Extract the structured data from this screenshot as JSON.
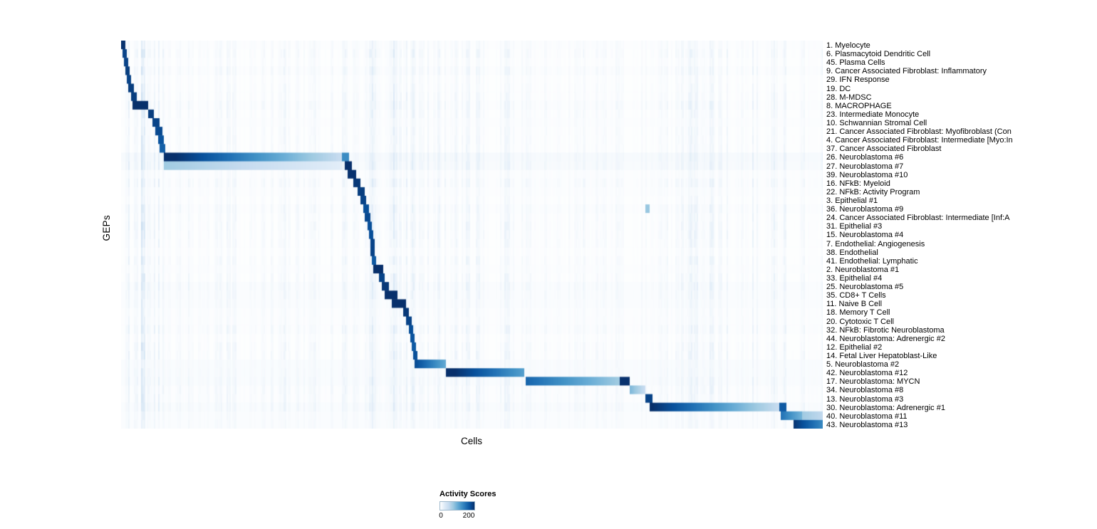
{
  "chart_data": {
    "type": "heatmap",
    "title": "",
    "xlabel": "Cells",
    "ylabel": "GEPs",
    "grid": false,
    "n_rows": 45,
    "colorbar": {
      "title": "Activity Scores",
      "tick_labels": [
        "0",
        "200"
      ],
      "min": 0,
      "max": 232,
      "palette": [
        "#ffffff",
        "#deebf7",
        "#c6dbef",
        "#9ecae1",
        "#6baed6",
        "#4292c6",
        "#2171b5",
        "#08519c",
        "#08306b"
      ]
    },
    "rows": [
      {
        "label": "1. Myelocyte",
        "base": 3,
        "segments": [
          [
            0.0,
            0.005,
            230,
            230
          ]
        ]
      },
      {
        "label": "6. Plasmacytoid Dendritic Cell",
        "base": 2,
        "segments": [
          [
            0.002,
            0.007,
            215,
            215
          ]
        ]
      },
      {
        "label": "45. Plasma Cells",
        "base": 2,
        "segments": [
          [
            0.004,
            0.009,
            215,
            215
          ]
        ]
      },
      {
        "label": "9. Cancer Associated Fibroblast: Inflammatory",
        "base": 3,
        "segments": [
          [
            0.005,
            0.012,
            220,
            220
          ]
        ]
      },
      {
        "label": "29. IFN Response",
        "base": 2,
        "segments": [
          [
            0.007,
            0.014,
            215,
            215
          ]
        ]
      },
      {
        "label": "19. DC",
        "base": 2,
        "segments": [
          [
            0.01,
            0.018,
            220,
            220
          ]
        ]
      },
      {
        "label": "28. M-MDSC",
        "base": 2,
        "segments": [
          [
            0.013,
            0.021,
            220,
            220
          ]
        ]
      },
      {
        "label": "8. MACROPHAGE",
        "base": 3,
        "segments": [
          [
            0.015,
            0.038,
            235,
            235
          ]
        ]
      },
      {
        "label": "23. Intermediate Monocyte",
        "base": 2,
        "segments": [
          [
            0.037,
            0.046,
            220,
            220
          ]
        ]
      },
      {
        "label": "10. Schwannian Stromal Cell",
        "base": 3,
        "segments": [
          [
            0.044,
            0.053,
            215,
            215
          ]
        ]
      },
      {
        "label": "21. Cancer Associated Fibroblast: Myofibroblast (Con",
        "base": 2,
        "segments": [
          [
            0.048,
            0.057,
            210,
            210
          ]
        ]
      },
      {
        "label": "4. Cancer Associated Fibroblast: Intermediate [Myo:In",
        "base": 2,
        "segments": [
          [
            0.051,
            0.059,
            200,
            200
          ]
        ]
      },
      {
        "label": "37. Cancer Associated Fibroblast",
        "base": 2,
        "segments": [
          [
            0.054,
            0.061,
            190,
            190
          ]
        ]
      },
      {
        "label": "26. Neuroblastoma #6",
        "base": 7,
        "segments": [
          [
            0.059,
            0.313,
            245,
            55
          ],
          [
            0.314,
            0.323,
            150,
            150
          ]
        ]
      },
      {
        "label": "27. Neuroblastoma #7",
        "base": 6,
        "segments": [
          [
            0.059,
            0.313,
            85,
            25
          ],
          [
            0.317,
            0.328,
            235,
            235
          ]
        ]
      },
      {
        "label": "39. Neuroblastoma #10",
        "base": 3,
        "segments": [
          [
            0.322,
            0.333,
            230,
            230
          ]
        ]
      },
      {
        "label": "16. NFkB: Myeloid",
        "base": 3,
        "segments": [
          [
            0.33,
            0.341,
            225,
            225
          ]
        ]
      },
      {
        "label": "22. NFkB: Activity Program",
        "base": 3,
        "segments": [
          [
            0.336,
            0.346,
            220,
            220
          ]
        ]
      },
      {
        "label": "3. Epithelial #1",
        "base": 2,
        "segments": [
          [
            0.341,
            0.349,
            215,
            215
          ]
        ]
      },
      {
        "label": "36. Neuroblastoma #9",
        "base": 3,
        "segments": [
          [
            0.344,
            0.352,
            205,
            205
          ],
          [
            0.746,
            0.752,
            90,
            90
          ]
        ]
      },
      {
        "label": "24. Cancer Associated Fibroblast: Intermediate [Inf:A",
        "base": 2,
        "segments": [
          [
            0.347,
            0.354,
            210,
            210
          ]
        ]
      },
      {
        "label": "31. Epithelial #3",
        "base": 2,
        "segments": [
          [
            0.35,
            0.356,
            205,
            205
          ]
        ]
      },
      {
        "label": "15. Neuroblastoma #4",
        "base": 2,
        "segments": [
          [
            0.352,
            0.358,
            205,
            205
          ]
        ]
      },
      {
        "label": "7. Endothelial: Angiogenesis",
        "base": 2,
        "segments": [
          [
            0.354,
            0.36,
            215,
            215
          ]
        ]
      },
      {
        "label": "38. Endothelial",
        "base": 2,
        "segments": [
          [
            0.355,
            0.361,
            215,
            215
          ]
        ]
      },
      {
        "label": "41. Endothelial: Lymphatic",
        "base": 2,
        "segments": [
          [
            0.356,
            0.362,
            195,
            195
          ]
        ]
      },
      {
        "label": "2. Neuroblastoma #1",
        "base": 3,
        "segments": [
          [
            0.358,
            0.372,
            245,
            245
          ]
        ]
      },
      {
        "label": "33. Epithelial #4",
        "base": 2,
        "segments": [
          [
            0.366,
            0.374,
            215,
            215
          ]
        ]
      },
      {
        "label": "25. Neuroblastoma #5",
        "base": 4,
        "segments": [
          [
            0.371,
            0.381,
            225,
            225
          ]
        ]
      },
      {
        "label": "35. CD8+ T Cells",
        "base": 4,
        "segments": [
          [
            0.374,
            0.392,
            235,
            235
          ]
        ]
      },
      {
        "label": "11. Naive B Cell",
        "base": 4,
        "segments": [
          [
            0.384,
            0.406,
            248,
            248
          ]
        ]
      },
      {
        "label": "18. Memory T Cell",
        "base": 3,
        "segments": [
          [
            0.401,
            0.41,
            225,
            225
          ]
        ]
      },
      {
        "label": "20. Cytotoxic T Cell",
        "base": 3,
        "segments": [
          [
            0.406,
            0.413,
            215,
            215
          ]
        ]
      },
      {
        "label": "32. NFkB: Fibrotic Neuroblastoma",
        "base": 3,
        "segments": [
          [
            0.409,
            0.416,
            205,
            205
          ]
        ]
      },
      {
        "label": "44. Neuroblastoma: Adrenergic #2",
        "base": 2,
        "segments": [
          [
            0.412,
            0.418,
            200,
            200
          ]
        ]
      },
      {
        "label": "12. Epithelial #2",
        "base": 2,
        "segments": [
          [
            0.414,
            0.42,
            195,
            195
          ]
        ]
      },
      {
        "label": "14. Fetal Liver Hepatoblast-Like",
        "base": 2,
        "segments": [
          [
            0.416,
            0.422,
            205,
            205
          ]
        ]
      },
      {
        "label": "5. Neuroblastoma #2",
        "base": 5,
        "segments": [
          [
            0.418,
            0.462,
            210,
            120
          ]
        ]
      },
      {
        "label": "42. Neuroblastoma #12",
        "base": 5,
        "segments": [
          [
            0.462,
            0.574,
            245,
            130
          ]
        ]
      },
      {
        "label": "17. Neuroblastoma: MYCN",
        "base": 5,
        "segments": [
          [
            0.576,
            0.709,
            185,
            85
          ],
          [
            0.709,
            0.723,
            230,
            230
          ]
        ]
      },
      {
        "label": "34. Neuroblastoma #8",
        "base": 3,
        "segments": [
          [
            0.723,
            0.747,
            110,
            50
          ]
        ]
      },
      {
        "label": "13. Neuroblastoma #3",
        "base": 3,
        "segments": [
          [
            0.746,
            0.756,
            215,
            215
          ]
        ]
      },
      {
        "label": "30. Neuroblastoma: Adrenergic #1",
        "base": 5,
        "segments": [
          [
            0.753,
            0.937,
            235,
            55
          ],
          [
            0.937,
            0.947,
            195,
            195
          ]
        ]
      },
      {
        "label": "40. Neuroblastoma #11",
        "base": 4,
        "segments": [
          [
            0.939,
            0.97,
            175,
            110
          ],
          [
            0.97,
            1.0,
            85,
            60
          ]
        ]
      },
      {
        "label": "43. Neuroblastoma #13",
        "base": 4,
        "segments": [
          [
            0.957,
            1.0,
            230,
            150
          ]
        ]
      }
    ]
  }
}
